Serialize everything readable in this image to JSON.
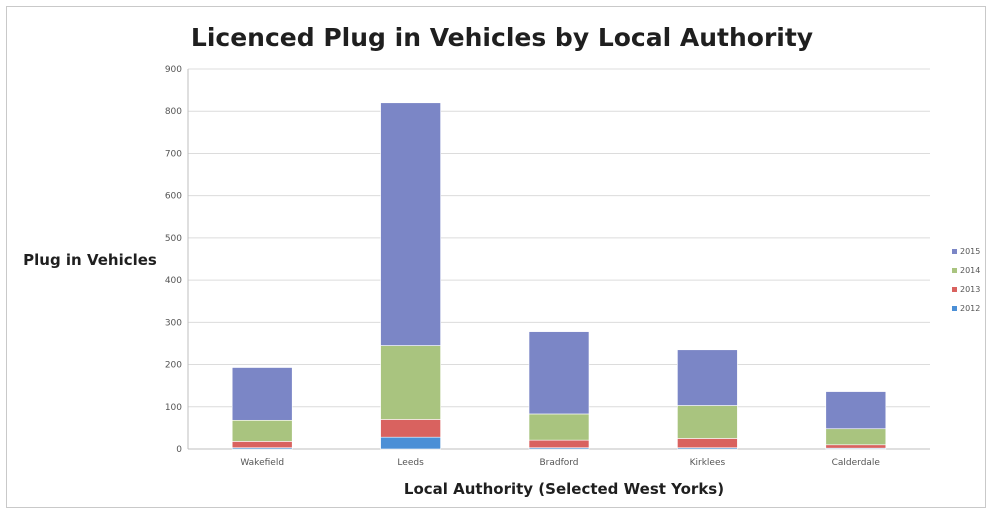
{
  "chart_data": {
    "type": "bar",
    "stacked": true,
    "title": "Licenced Plug in Vehicles by Local Authority",
    "xlabel": "Local Authority (Selected West Yorks)",
    "ylabel": "Plug in Vehicles",
    "ylim": [
      0,
      900
    ],
    "yticks": [
      0,
      100,
      200,
      300,
      400,
      500,
      600,
      700,
      800,
      900
    ],
    "categories": [
      "Wakefield",
      "Leeds",
      "Bradford",
      "Kirklees",
      "Calderdale"
    ],
    "series": [
      {
        "name": "2012",
        "color": "#4b8fd6",
        "values": [
          3,
          28,
          3,
          3,
          2
        ]
      },
      {
        "name": "2013",
        "color": "#d9625f",
        "values": [
          15,
          42,
          18,
          22,
          8
        ]
      },
      {
        "name": "2014",
        "color": "#a9c47f",
        "values": [
          50,
          175,
          62,
          78,
          38
        ]
      },
      {
        "name": "2015",
        "color": "#7b86c6",
        "values": [
          125,
          575,
          195,
          132,
          88
        ]
      }
    ],
    "legend_order": [
      "2015",
      "2014",
      "2013",
      "2012"
    ],
    "legend_position": "right",
    "grid": true
  }
}
